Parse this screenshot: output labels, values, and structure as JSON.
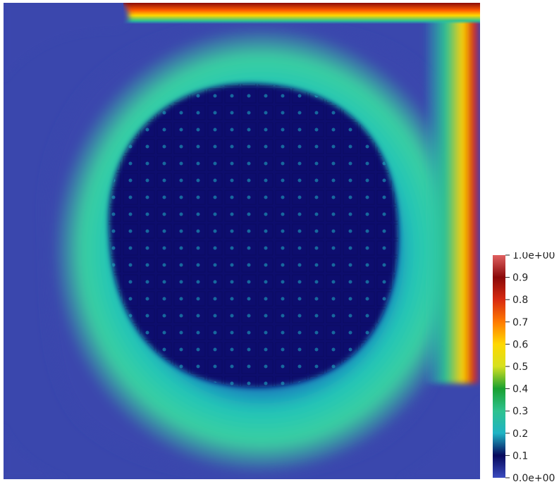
{
  "chart_data": {
    "type": "heatmap",
    "title": "",
    "xlabel": "",
    "ylabel": "",
    "colorbar": {
      "range": [
        0.0,
        1.0
      ],
      "tick_values": [
        0.0,
        0.1,
        0.2,
        0.3,
        0.4,
        0.5,
        0.6,
        0.7,
        0.8,
        0.9,
        1.0
      ],
      "tick_labels": [
        "0.0e+00",
        "0.1",
        "0.2",
        "0.3",
        "0.4",
        "0.5",
        "0.6",
        "0.7",
        "0.8",
        "0.9",
        "1.0e+00"
      ],
      "colormap": [
        "#3b4cc0",
        "#06085c",
        "#1fb3c4",
        "#2ec28f",
        "#18a030",
        "#d6e020",
        "#ffd800",
        "#ff7a00",
        "#d82a10",
        "#8a0808",
        "#e06060"
      ],
      "placement": "right"
    },
    "field_colors": {
      "background": "#3a47ad",
      "core": "#08086a",
      "ring": "#22c4b8",
      "ring_outer": "#3ad0a0",
      "wall_jet_high": "#ffd000",
      "wall_jet_peak": "#cc2010",
      "lid": "#8a0a08"
    }
  }
}
